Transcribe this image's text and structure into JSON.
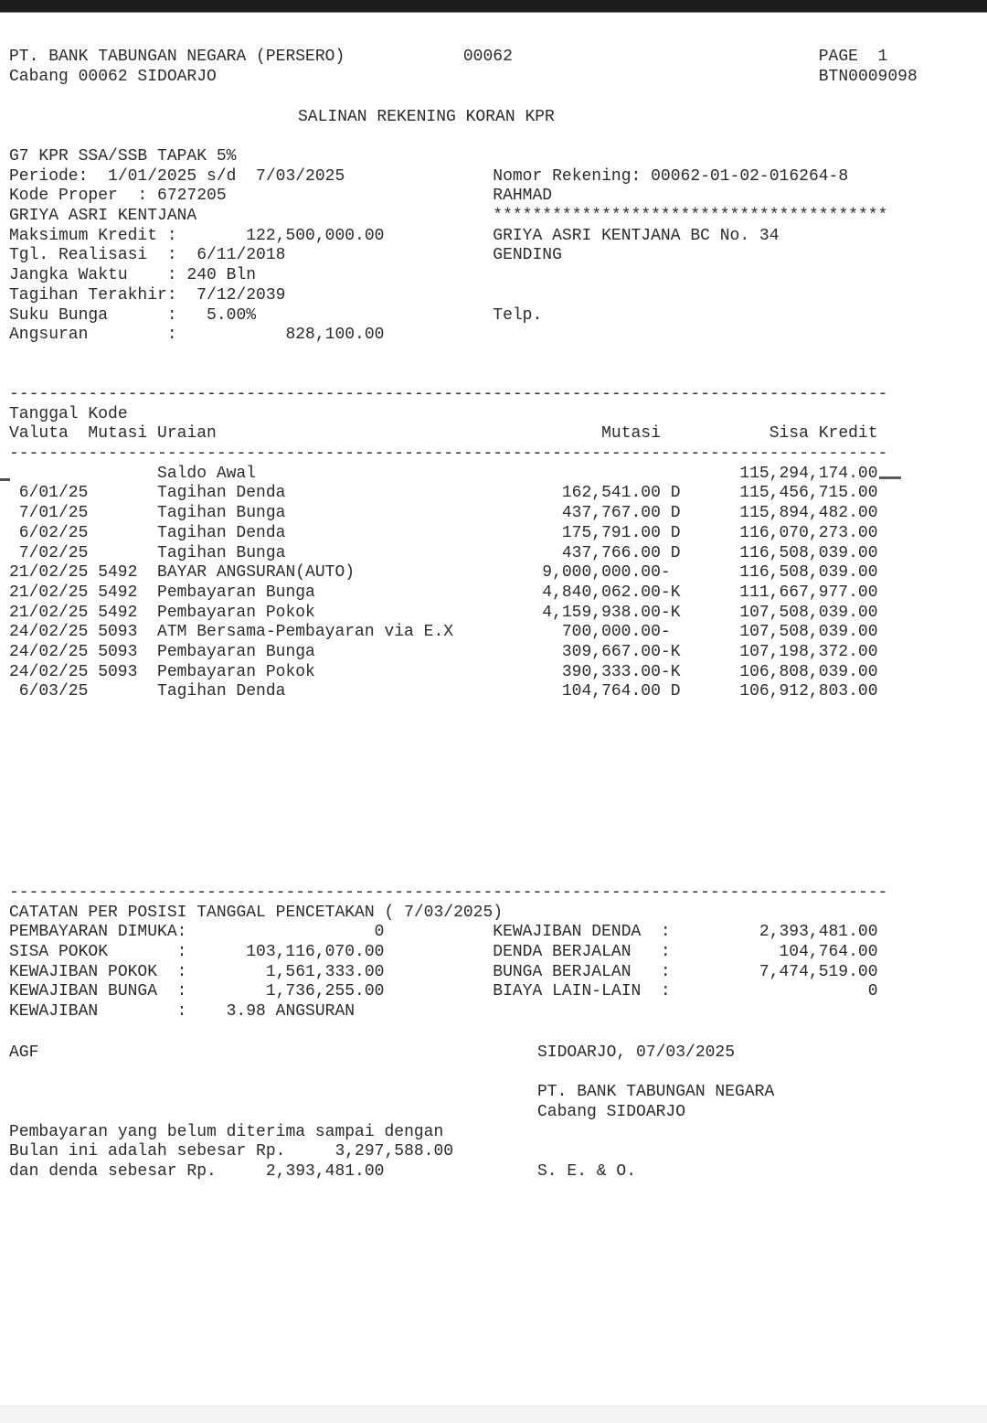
{
  "colors": {
    "text": "#2b2b2b",
    "paper": "#ffffff",
    "top_bar": "#1c1c1c",
    "bottom_bar": "#f4f4f4"
  },
  "separator_line": "-----------------------------------------------------------------------------------------",
  "header": {
    "bank_name": "PT. BANK TABUNGAN NEGARA (PERSERO)",
    "branch_code": "00062",
    "page_label": "PAGE  1",
    "branch_line": "Cabang 00062 SIDOARJO",
    "doc_code": "BTN0009098",
    "title": "SALINAN REKENING KORAN KPR"
  },
  "account_info": {
    "lines": [
      {
        "left": "G7 KPR SSA/SSB TAPAK 5%",
        "right": ""
      },
      {
        "left": "Periode:  1/01/2025 s/d  7/03/2025",
        "right": "Nomor Rekening: 00062-01-02-016264-8"
      },
      {
        "left": "Kode Proper  : 6727205",
        "right": "RAHMAD"
      },
      {
        "left": "GRIYA ASRI KENTJANA",
        "right": "****************************************"
      },
      {
        "left": "Maksimum Kredit :       122,500,000.00",
        "right": "GRIYA ASRI KENTJANA BC No. 34"
      },
      {
        "left": "Tgl. Realisasi  :  6/11/2018",
        "right": "GENDING"
      },
      {
        "left": "Jangka Waktu    : 240 Bln",
        "right": ""
      },
      {
        "left": "Tagihan Terakhir:  7/12/2039",
        "right": ""
      },
      {
        "left": "Suku Bunga      :   5.00%",
        "right": "Telp."
      },
      {
        "left": "Angsuran        :           828,100.00",
        "right": ""
      }
    ]
  },
  "statement_table": {
    "header_line1": "Tanggal Kode",
    "header_line2_left": "Valuta  Mutasi Uraian",
    "header_mutasi": "Mutasi",
    "header_sisa": "Sisa Kredit",
    "rows": [
      {
        "valuta": "",
        "kode": "",
        "uraian": "Saldo Awal",
        "mutasi": "",
        "suffix": "",
        "sisa": "115,294,174.00"
      },
      {
        "valuta": "6/01/25",
        "kode": "",
        "uraian": "Tagihan Denda",
        "mutasi": "162,541.00",
        "suffix": " D",
        "sisa": "115,456,715.00"
      },
      {
        "valuta": "7/01/25",
        "kode": "",
        "uraian": "Tagihan Bunga",
        "mutasi": "437,767.00",
        "suffix": " D",
        "sisa": "115,894,482.00"
      },
      {
        "valuta": "6/02/25",
        "kode": "",
        "uraian": "Tagihan Denda",
        "mutasi": "175,791.00",
        "suffix": " D",
        "sisa": "116,070,273.00"
      },
      {
        "valuta": "7/02/25",
        "kode": "",
        "uraian": "Tagihan Bunga",
        "mutasi": "437,766.00",
        "suffix": " D",
        "sisa": "116,508,039.00"
      },
      {
        "valuta": "21/02/25",
        "kode": "5492",
        "uraian": "BAYAR ANGSURAN(AUTO)",
        "mutasi": "9,000,000.00",
        "suffix": "-",
        "sisa": "116,508,039.00"
      },
      {
        "valuta": "21/02/25",
        "kode": "5492",
        "uraian": "Pembayaran Bunga",
        "mutasi": "4,840,062.00",
        "suffix": "-K",
        "sisa": "111,667,977.00"
      },
      {
        "valuta": "21/02/25",
        "kode": "5492",
        "uraian": "Pembayaran Pokok",
        "mutasi": "4,159,938.00",
        "suffix": "-K",
        "sisa": "107,508,039.00"
      },
      {
        "valuta": "24/02/25",
        "kode": "5093",
        "uraian": "ATM Bersama-Pembayaran via E.X",
        "mutasi": "700,000.00",
        "suffix": "-",
        "sisa": "107,508,039.00"
      },
      {
        "valuta": "24/02/25",
        "kode": "5093",
        "uraian": "Pembayaran Bunga",
        "mutasi": "309,667.00",
        "suffix": "-K",
        "sisa": "107,198,372.00"
      },
      {
        "valuta": "24/02/25",
        "kode": "5093",
        "uraian": "Pembayaran Pokok",
        "mutasi": "390,333.00",
        "suffix": "-K",
        "sisa": "106,808,039.00"
      },
      {
        "valuta": "6/03/25",
        "kode": "",
        "uraian": "Tagihan Denda",
        "mutasi": "104,764.00",
        "suffix": " D",
        "sisa": "106,912,803.00"
      }
    ]
  },
  "catatan": {
    "heading": "CATATAN PER POSISI TANGGAL PENCETAKAN ( 7/03/2025)",
    "rows": [
      {
        "l_label": "PEMBAYARAN DIMUKA:",
        "l_value": "0",
        "r_label": "KEWAJIBAN DENDA  :",
        "r_value": "2,393,481.00"
      },
      {
        "l_label": "SISA POKOK       :",
        "l_value": "103,116,070.00",
        "r_label": "DENDA BERJALAN   :",
        "r_value": "104,764.00"
      },
      {
        "l_label": "KEWAJIBAN POKOK  :",
        "l_value": "1,561,333.00",
        "r_label": "BUNGA BERJALAN   :",
        "r_value": "7,474,519.00"
      },
      {
        "l_label": "KEWAJIBAN BUNGA  :",
        "l_value": "1,736,255.00",
        "r_label": "BIAYA LAIN-LAIN  :",
        "r_value": "0"
      },
      {
        "l_label": "KEWAJIBAN        :",
        "l_value": "    3.98 ANGSURAN",
        "l_align": "left",
        "r_label": "",
        "r_value": ""
      }
    ]
  },
  "signoff": {
    "agf": "AGF",
    "place_date": "SIDOARJO, 07/03/2025",
    "bank": "PT. BANK TABUNGAN NEGARA",
    "branch": "Cabang SIDOARJO",
    "note_line1": "Pembayaran yang belum diterima sampai dengan",
    "note_line2": "Bulan ini adalah sebesar Rp.     3,297,588.00",
    "note_line3": "dan denda sebesar Rp.     2,393,481.00",
    "seo": "S. E. & O."
  }
}
